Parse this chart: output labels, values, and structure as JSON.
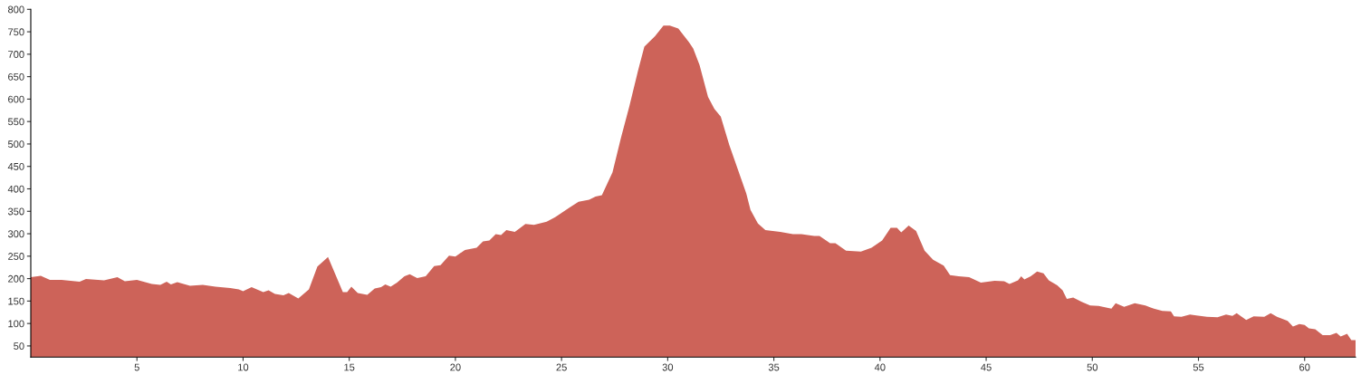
{
  "chart_data": {
    "type": "area",
    "x": [
      0,
      0.47,
      0.9,
      1.45,
      2.3,
      2.6,
      3.45,
      4.08,
      4.43,
      5.0,
      5.7,
      6.1,
      6.4,
      6.6,
      6.9,
      7.5,
      8.1,
      8.7,
      9.4,
      9.8,
      10.0,
      10.4,
      10.95,
      11.2,
      11.5,
      11.9,
      12.15,
      12.6,
      13.1,
      13.5,
      14.0,
      14.7,
      14.9,
      15.1,
      15.4,
      15.85,
      16.2,
      16.5,
      16.7,
      16.95,
      17.25,
      17.6,
      17.85,
      18.2,
      18.6,
      19.0,
      19.3,
      19.7,
      20.0,
      20.45,
      21.0,
      21.3,
      21.6,
      21.9,
      22.15,
      22.4,
      22.8,
      23.3,
      23.7,
      24.3,
      24.7,
      25.4,
      25.8,
      26.3,
      26.6,
      26.9,
      27.4,
      27.8,
      28.2,
      28.6,
      28.9,
      29.4,
      29.8,
      30.1,
      30.5,
      31.0,
      31.2,
      31.5,
      31.9,
      32.2,
      32.5,
      32.9,
      33.3,
      33.7,
      33.9,
      34.25,
      34.6,
      35.3,
      35.9,
      36.3,
      36.9,
      37.15,
      37.65,
      37.9,
      38.4,
      39.1,
      39.6,
      40.1,
      40.5,
      40.8,
      41.0,
      41.35,
      41.7,
      42.1,
      42.5,
      43.0,
      43.3,
      43.7,
      44.2,
      44.75,
      45.4,
      45.85,
      46.1,
      46.5,
      46.65,
      46.8,
      47.1,
      47.4,
      47.7,
      47.95,
      48.35,
      48.6,
      48.8,
      49.1,
      49.5,
      49.9,
      50.3,
      50.9,
      51.1,
      51.5,
      51.75,
      52.0,
      52.5,
      52.9,
      53.3,
      53.7,
      53.85,
      54.2,
      54.6,
      54.9,
      55.4,
      55.9,
      56.3,
      56.6,
      56.8,
      57.25,
      57.6,
      58.1,
      58.4,
      58.7,
      59.2,
      59.45,
      59.75,
      60.0,
      60.2,
      60.5,
      60.85,
      61.2,
      61.5,
      61.7,
      62.0,
      62.2,
      62.4
    ],
    "series": [
      {
        "color": "#cd6359",
        "values": [
          203,
          206,
          197,
          197,
          193,
          199,
          196,
          203,
          194,
          197,
          188,
          186,
          193,
          187,
          192,
          184,
          186,
          182,
          179,
          176,
          172,
          181,
          170,
          174,
          166,
          163,
          168,
          156,
          176,
          227,
          248,
          170,
          170,
          182,
          168,
          164,
          178,
          181,
          187,
          182,
          191,
          205,
          210,
          201,
          205,
          228,
          230,
          251,
          249,
          264,
          269,
          283,
          285,
          299,
          297,
          308,
          304,
          322,
          320,
          327,
          337,
          359,
          371,
          376,
          383,
          386,
          437,
          514,
          585,
          663,
          717,
          740,
          764,
          764,
          757,
          727,
          713,
          676,
          605,
          578,
          561,
          498,
          444,
          390,
          353,
          323,
          308,
          304,
          299,
          299,
          295,
          295,
          279,
          279,
          262,
          260,
          269,
          285,
          313,
          313,
          303,
          318,
          306,
          262,
          242,
          229,
          208,
          205,
          203,
          191,
          195,
          194,
          188,
          196,
          205,
          198,
          205,
          216,
          212,
          196,
          185,
          174,
          155,
          158,
          148,
          140,
          139,
          133,
          145,
          137,
          141,
          145,
          140,
          133,
          128,
          127,
          116,
          115,
          120,
          118,
          115,
          114,
          120,
          117,
          123,
          108,
          116,
          115,
          123,
          115,
          106,
          93,
          99,
          97,
          89,
          87,
          74,
          74,
          79,
          71,
          77,
          63,
          63
        ]
      }
    ],
    "xlim": [
      0,
      62.4
    ],
    "ylim": [
      25,
      800
    ],
    "xticks": [
      5,
      10,
      15,
      20,
      25,
      30,
      35,
      40,
      45,
      50,
      55,
      60
    ],
    "yticks": [
      50,
      100,
      150,
      200,
      250,
      300,
      350,
      400,
      450,
      500,
      550,
      600,
      650,
      700,
      750,
      800
    ],
    "grid": false
  }
}
